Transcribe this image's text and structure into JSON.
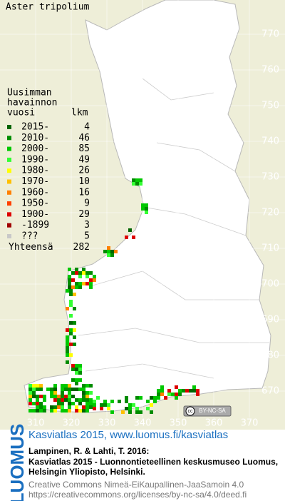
{
  "map": {
    "title": "Aster tripolium",
    "legend": {
      "heading": [
        "Uusimman",
        "havainnon",
        "vuosi"
      ],
      "count_heading": "lkm",
      "entries": [
        {
          "label": "2015-",
          "count": 4,
          "color": "#006400"
        },
        {
          "label": "2010-",
          "count": 46,
          "color": "#008c00"
        },
        {
          "label": "2000-",
          "count": 85,
          "color": "#00c800"
        },
        {
          "label": "1990-",
          "count": 49,
          "color": "#33ff33"
        },
        {
          "label": "1980-",
          "count": 26,
          "color": "#ffff00"
        },
        {
          "label": "1970-",
          "count": 10,
          "color": "#ffc000"
        },
        {
          "label": "1960-",
          "count": 16,
          "color": "#ff8000"
        },
        {
          "label": "1950-",
          "count": 9,
          "color": "#ff4000"
        },
        {
          "label": "1900-",
          "count": 29,
          "color": "#dd0000"
        },
        {
          "label": "-1899",
          "count": 3,
          "color": "#a00000"
        },
        {
          "label": "???",
          "count": 5,
          "color": "#c8c8c8"
        }
      ],
      "total_label": "Yhteensä",
      "total": 282
    },
    "northing_ticks": [
      770,
      760,
      750,
      740,
      730,
      720,
      710,
      700,
      690,
      680,
      670
    ],
    "easting_ticks": [
      310,
      320,
      330,
      340,
      350,
      360,
      370
    ],
    "license_badge": "BY-NC-SA"
  },
  "footer": {
    "logo": "LUOMUS",
    "link": "Kasviatlas 2015, www.luomus.fi/kasviatlas",
    "citation": [
      "Lampinen, R. & Lahti, T. 2016:",
      "Kasviatlas 2015 - Luonnontieteellinen keskusmuseo Luomus,",
      "Helsingin Yliopisto, Helsinki."
    ],
    "license": [
      "Creative Commons Nimeä-EiKaupallinen-JaaSamoin 4.0",
      "https://creativecommons.org/licenses/by-nc-sa/4.0/deed.fi"
    ]
  }
}
